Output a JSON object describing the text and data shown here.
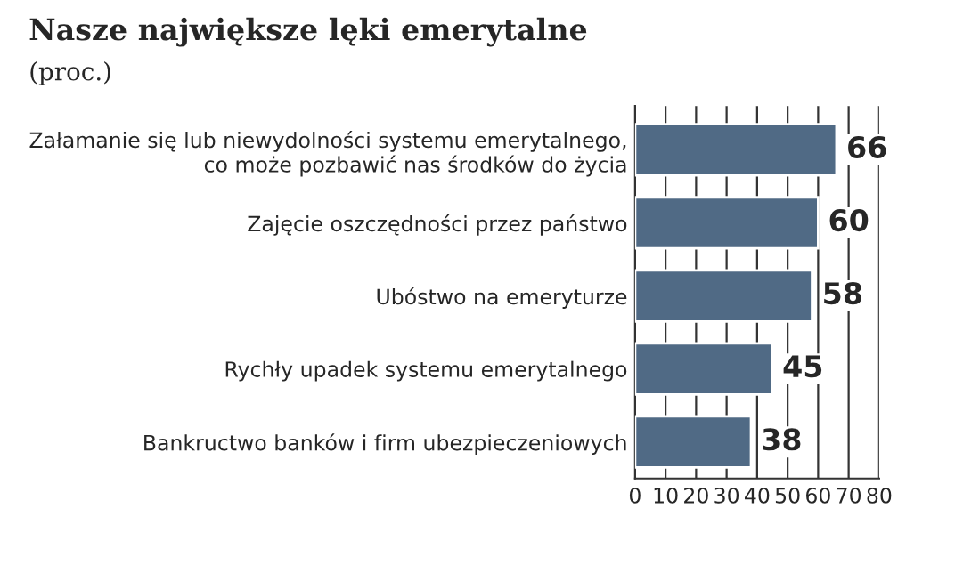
{
  "chart_data": {
    "type": "bar",
    "orientation": "horizontal",
    "title": "Nasze największe lęki emerytalne",
    "subtitle": "(proc.)",
    "categories": [
      "Załamanie się lub niewydolności systemu emerytalnego,\nco może pozbawić nas środków do życia",
      "Zajęcie oszczędności przez państwo",
      "Ubóstwo na emeryturze",
      "Rychły upadek systemu emerytalnego",
      "Bankructwo banków i firm ubezpieczeniowych"
    ],
    "values": [
      66,
      60,
      58,
      45,
      38
    ],
    "color": "#506a85",
    "xlim": [
      0,
      80
    ],
    "xticks": [
      0,
      10,
      20,
      30,
      40,
      50,
      60,
      70,
      80
    ],
    "grid": "x",
    "data_labels": true
  }
}
